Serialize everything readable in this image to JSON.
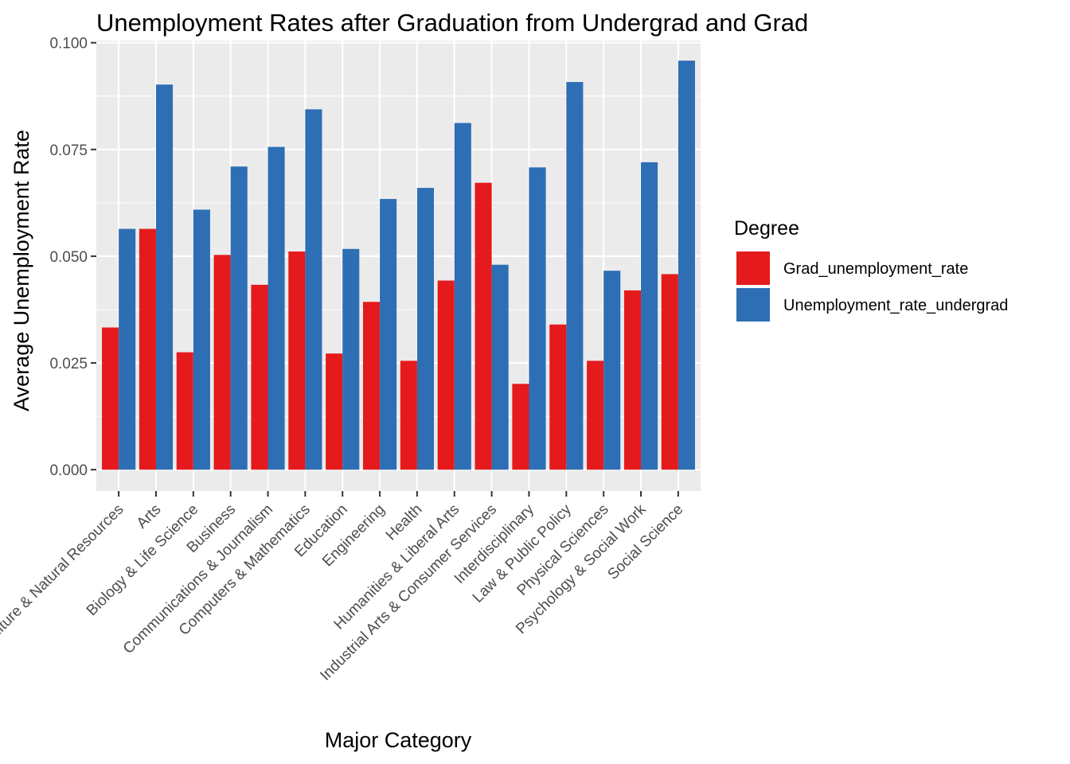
{
  "chart_data": {
    "type": "bar",
    "title": "Unemployment Rates after Graduation from Undergrad and Grad",
    "xlabel": "Major Category",
    "ylabel": "Average Unemployment Rate",
    "ylim": [
      -0.005,
      0.1005
    ],
    "yticks": [
      0.0,
      0.025,
      0.05,
      0.075,
      0.1
    ],
    "ytick_labels": [
      "0.000",
      "0.025",
      "0.050",
      "0.075",
      "0.100"
    ],
    "grid": true,
    "legend_position": "right",
    "categories": [
      "Agriculture & Natural Resources",
      "Arts",
      "Biology & Life Science",
      "Business",
      "Communications & Journalism",
      "Computers & Mathematics",
      "Education",
      "Engineering",
      "Health",
      "Humanities & Liberal Arts",
      "Industrial Arts & Consumer Services",
      "Interdisciplinary",
      "Law & Public Policy",
      "Physical Sciences",
      "Psychology & Social Work",
      "Social Science"
    ],
    "series": [
      {
        "name": "Grad_unemployment_rate",
        "color": "#E41A1C",
        "values": [
          0.0333,
          0.0564,
          0.0275,
          0.0503,
          0.0433,
          0.0511,
          0.0272,
          0.0393,
          0.0255,
          0.0443,
          0.0672,
          0.0201,
          0.034,
          0.0255,
          0.042,
          0.0458
        ]
      },
      {
        "name": "Unemployment_rate_undergrad",
        "color": "#2E6EB4",
        "values": [
          0.0564,
          0.0902,
          0.0609,
          0.071,
          0.0756,
          0.0844,
          0.0517,
          0.0634,
          0.066,
          0.0812,
          0.048,
          0.0708,
          0.0908,
          0.0466,
          0.072,
          0.0958
        ]
      }
    ],
    "legend": {
      "title": "Degree"
    }
  }
}
